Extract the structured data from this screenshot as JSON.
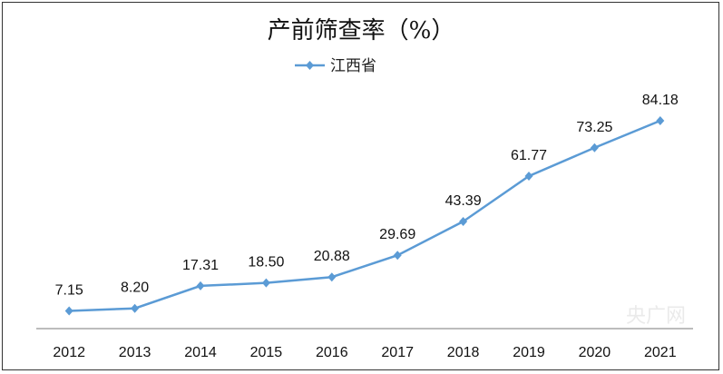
{
  "chart_data": {
    "type": "line",
    "title": "产前筛查率（%）",
    "categories": [
      "2012",
      "2013",
      "2014",
      "2015",
      "2016",
      "2017",
      "2018",
      "2019",
      "2020",
      "2021"
    ],
    "series": [
      {
        "name": "江西省",
        "values": [
          7.15,
          8.2,
          17.31,
          18.5,
          20.88,
          29.69,
          43.39,
          61.77,
          73.25,
          84.18
        ],
        "labels": [
          "7.15",
          "8.20",
          "17.31",
          "18.50",
          "20.88",
          "29.69",
          "43.39",
          "61.77",
          "73.25",
          "84.18"
        ]
      }
    ],
    "xlabel": "",
    "ylabel": "",
    "ylim": [
      0,
      100
    ],
    "grid": false,
    "legend": "top",
    "colors": {
      "series": "#5b9bd5",
      "axis": "#a6a6a6"
    },
    "marker": "diamond"
  },
  "watermark": "央广网"
}
